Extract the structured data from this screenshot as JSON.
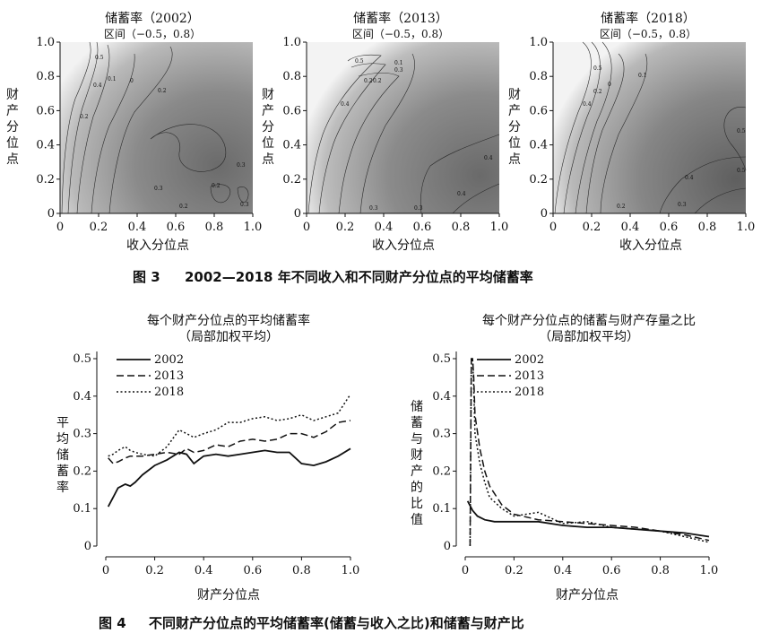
{
  "figure3": {
    "caption_num": "图 3",
    "caption_text": "2002—2018 年不同收入和不同财产分位点的平均储蓄率",
    "panels": [
      {
        "title": "储蓄率（2002）",
        "subtitle": "区间（−0.5，0.8）"
      },
      {
        "title": "储蓄率（2013）",
        "subtitle": "区间（−0.5，0.8）"
      },
      {
        "title": "储蓄率（2018）",
        "subtitle": "区间（−0.5，0.8）"
      }
    ],
    "xlabel": "收入分位点",
    "ylabel": "财产分位点",
    "ticks": [
      "0",
      "0.2",
      "0.4",
      "0.6",
      "0.8",
      "1.0"
    ],
    "contour_labels": [
      [
        "0.5",
        "0.4",
        "0.1",
        "0",
        "0.2",
        "0.2",
        "0.3",
        "0.3",
        "0.2",
        "0.2",
        "0.3"
      ],
      [
        "0.5",
        "0.4",
        "0.2",
        "0.1",
        "0.3",
        "0.2",
        "0.4",
        "0.4",
        "0.3",
        "0.3"
      ],
      [
        "0.5",
        "0.4",
        "0.2",
        "0",
        "0.1",
        "0.5",
        "0.5",
        "0.4",
        "0.3",
        "0.2"
      ]
    ]
  },
  "figure4": {
    "caption_num": "图 4",
    "caption_text": "不同财产分位点的平均储蓄率(储蓄与收入之比)和储蓄与财产比"
  },
  "chart_data": [
    {
      "type": "line",
      "title": "每个财产分位点的平均储蓄率",
      "subtitle": "（局部加权平均）",
      "xlabel": "财产分位点",
      "ylabel": "平均储蓄率",
      "xlim": [
        0,
        1.0
      ],
      "ylim": [
        0,
        0.5
      ],
      "xticks": [
        "0",
        "0.2",
        "0.4",
        "0.6",
        "0.8",
        "1.0"
      ],
      "yticks": [
        "0",
        "0.1",
        "0.2",
        "0.3",
        "0.4",
        "0.5"
      ],
      "legend": [
        "2002",
        "2013",
        "2018"
      ],
      "x": [
        0.01,
        0.03,
        0.05,
        0.08,
        0.1,
        0.12,
        0.15,
        0.2,
        0.25,
        0.3,
        0.33,
        0.36,
        0.4,
        0.45,
        0.5,
        0.55,
        0.6,
        0.65,
        0.7,
        0.75,
        0.8,
        0.85,
        0.9,
        0.95,
        1.0
      ],
      "series": [
        {
          "name": "2002",
          "style": "solid",
          "values": [
            0.105,
            0.13,
            0.155,
            0.165,
            0.16,
            0.17,
            0.19,
            0.215,
            0.23,
            0.25,
            0.245,
            0.22,
            0.24,
            0.245,
            0.24,
            0.245,
            0.25,
            0.255,
            0.25,
            0.25,
            0.22,
            0.215,
            0.225,
            0.24,
            0.26
          ]
        },
        {
          "name": "2013",
          "style": "dashed",
          "values": [
            0.235,
            0.22,
            0.225,
            0.235,
            0.24,
            0.24,
            0.24,
            0.245,
            0.25,
            0.245,
            0.26,
            0.25,
            0.255,
            0.27,
            0.265,
            0.28,
            0.285,
            0.28,
            0.285,
            0.3,
            0.3,
            0.29,
            0.305,
            0.33,
            0.335
          ]
        },
        {
          "name": "2018",
          "style": "dotted",
          "values": [
            0.24,
            0.245,
            0.255,
            0.265,
            0.255,
            0.25,
            0.245,
            0.24,
            0.265,
            0.31,
            0.3,
            0.29,
            0.3,
            0.31,
            0.33,
            0.33,
            0.34,
            0.345,
            0.335,
            0.34,
            0.35,
            0.335,
            0.345,
            0.355,
            0.405
          ]
        }
      ]
    },
    {
      "type": "line",
      "title": "每个财产分位点的储蓄与财产存量之比",
      "subtitle": "（局部加权平均）",
      "xlabel": "财产分位点",
      "ylabel": "储蓄与财产的比值",
      "xlim": [
        0,
        1.0
      ],
      "ylim": [
        0,
        0.5
      ],
      "xticks": [
        "0",
        "0.2",
        "0.4",
        "0.6",
        "0.8",
        "1.0"
      ],
      "yticks": [
        "0",
        "0.1",
        "0.2",
        "0.3",
        "0.4",
        "0.5"
      ],
      "legend": [
        "2002",
        "2013",
        "2018"
      ],
      "series": [
        {
          "name": "2002",
          "style": "solid",
          "x": [
            0.01,
            0.03,
            0.05,
            0.08,
            0.12,
            0.2,
            0.3,
            0.4,
            0.5,
            0.6,
            0.7,
            0.8,
            0.9,
            1.0
          ],
          "values": [
            0.12,
            0.095,
            0.08,
            0.07,
            0.065,
            0.065,
            0.065,
            0.055,
            0.05,
            0.05,
            0.045,
            0.04,
            0.035,
            0.025
          ]
        },
        {
          "name": "2013",
          "style": "dashed",
          "x": [
            0.02,
            0.025,
            0.03,
            0.035,
            0.04,
            0.06,
            0.08,
            0.1,
            0.15,
            0.2,
            0.3,
            0.4,
            0.5,
            0.6,
            0.7,
            0.8,
            0.9,
            1.0
          ],
          "values": [
            0.0,
            0.5,
            0.5,
            0.45,
            0.35,
            0.26,
            0.2,
            0.16,
            0.11,
            0.085,
            0.07,
            0.065,
            0.06,
            0.055,
            0.05,
            0.04,
            0.03,
            0.015
          ]
        },
        {
          "name": "2018",
          "style": "dotted",
          "x": [
            0.02,
            0.025,
            0.03,
            0.035,
            0.04,
            0.06,
            0.08,
            0.1,
            0.15,
            0.2,
            0.3,
            0.4,
            0.5,
            0.6,
            0.7,
            0.8,
            0.9,
            1.0
          ],
          "values": [
            0.0,
            0.5,
            0.5,
            0.42,
            0.3,
            0.22,
            0.17,
            0.13,
            0.1,
            0.08,
            0.09,
            0.06,
            0.065,
            0.05,
            0.045,
            0.04,
            0.025,
            0.01
          ]
        }
      ]
    }
  ]
}
